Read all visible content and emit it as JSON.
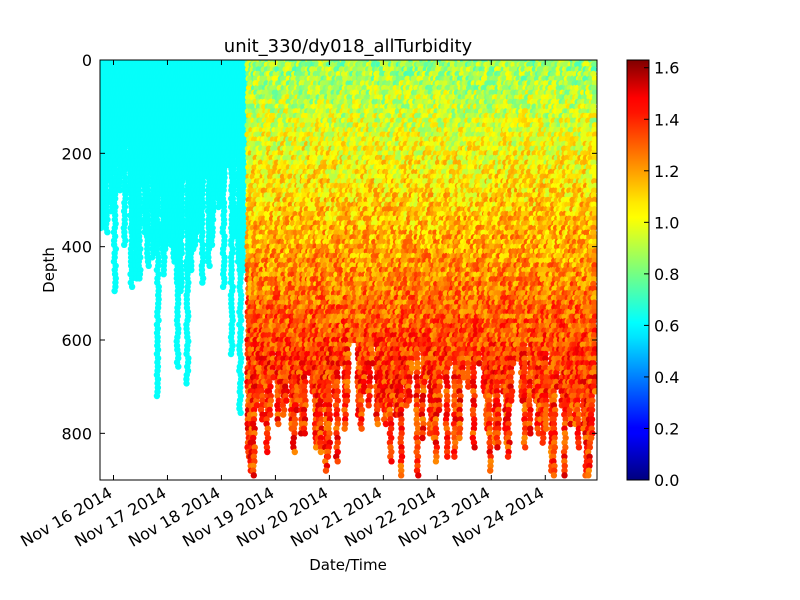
{
  "chart_data": {
    "type": "scatter",
    "title": "unit_330/dy018_allTurbidity",
    "xlabel": "Date/Time",
    "ylabel": "Depth",
    "x_tick_labels": [
      "Nov 16 2014",
      "Nov 17 2014",
      "Nov 18 2014",
      "Nov 19 2014",
      "Nov 20 2014",
      "Nov 21 2014",
      "Nov 22 2014",
      "Nov 23 2014",
      "Nov 24 2014"
    ],
    "x_tick_dates": [
      "2014-11-16",
      "2014-11-17",
      "2014-11-18",
      "2014-11-19",
      "2014-11-20",
      "2014-11-21",
      "2014-11-22",
      "2014-11-23",
      "2014-11-24"
    ],
    "xlim": [
      "2014-11-15T18:00",
      "2014-11-24T23:00"
    ],
    "ylim": [
      0,
      900
    ],
    "y_inverted": true,
    "y_ticks": [
      0,
      200,
      400,
      600,
      800
    ],
    "colorbar": {
      "colormap": "jet",
      "range": [
        0.0,
        1.63
      ],
      "ticks": [
        0.0,
        0.2,
        0.4,
        0.6,
        0.8,
        1.0,
        1.2,
        1.4,
        1.6
      ]
    },
    "series_summary": [
      {
        "period": "2014-11-15T18:00 to 2014-11-18T12:00",
        "depth_range": [
          0,
          800
        ],
        "turbidity": 0.62
      },
      {
        "period": "2014-11-18T12:00 to 2014-11-24T23:00",
        "depth_range": [
          0,
          900
        ],
        "turbidity_surface": 0.85,
        "turbidity_deep": 1.35
      }
    ],
    "colors": {
      "background": "#ffffff",
      "axis": "#000000"
    }
  }
}
